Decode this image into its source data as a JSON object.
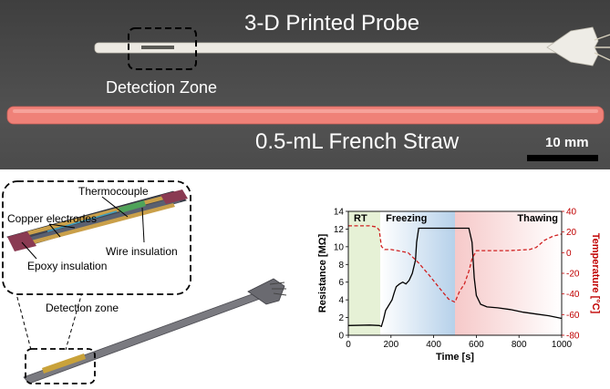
{
  "photo": {
    "probe_title": "3-D Printed Probe",
    "detection_zone_label": "Detection Zone",
    "straw_label": "0.5-mL French Straw",
    "scale_bar_label": "10 mm"
  },
  "schematic": {
    "labels": {
      "thermocouple": "Thermocouple",
      "copper_electrodes": "Copper electrodes",
      "wire_insulation": "Wire insulation",
      "epoxy_insulation": "Epoxy insulation",
      "detection_zone": "Detection zone"
    }
  },
  "chart_data": {
    "type": "line",
    "xlabel": "Time [s]",
    "ylabel": "Resistance [MΩ]",
    "y2label": "Temperature [°C]",
    "xlim": [
      0,
      1000
    ],
    "ylim": [
      0,
      14
    ],
    "y2lim": [
      -80,
      40
    ],
    "x_ticks": [
      0,
      200,
      400,
      600,
      800,
      1000
    ],
    "y_ticks": [
      0,
      2,
      4,
      6,
      8,
      10,
      12,
      14
    ],
    "y2_ticks": [
      -80,
      -60,
      -40,
      -20,
      0,
      20,
      40
    ],
    "regions": [
      {
        "label": "RT",
        "x0": 0,
        "x1": 150,
        "color": "#e6f1d6"
      },
      {
        "label": "Freezing",
        "x0": 150,
        "x1": 500,
        "color": "#b6d1ea"
      },
      {
        "label": "Thawing",
        "x0": 500,
        "x1": 1000,
        "color": "#f6c9c9"
      }
    ],
    "colors": {
      "resistance": "#000000",
      "temperature": "#d02020",
      "right_axis": "#c00000"
    },
    "series": [
      {
        "axis": "left",
        "x": [
          0,
          100,
          145,
          155,
          165,
          175,
          185,
          205,
          215,
          225,
          240,
          255,
          270,
          285,
          300,
          315,
          320,
          330,
          400,
          480,
          565,
          580,
          590,
          600,
          620,
          650,
          700,
          760,
          820,
          880,
          940,
          1000
        ],
        "y": [
          1.1,
          1.15,
          1.1,
          1.0,
          1.8,
          2.8,
          3.2,
          4.0,
          4.8,
          5.5,
          5.8,
          6.0,
          5.8,
          6.2,
          7.0,
          8.5,
          10.5,
          12.1,
          12.1,
          12.1,
          12.1,
          10.5,
          6.5,
          4.5,
          3.5,
          3.2,
          3.1,
          2.9,
          2.6,
          2.4,
          2.2,
          1.9
        ]
      },
      {
        "axis": "right",
        "x": [
          0,
          100,
          130,
          145,
          155,
          170,
          200,
          230,
          280,
          330,
          380,
          430,
          470,
          500,
          520,
          545,
          565,
          580,
          600,
          650,
          750,
          850,
          880,
          920,
          960,
          1000
        ],
        "y": [
          26,
          26,
          25,
          22,
          6,
          3,
          3,
          2,
          0,
          -10,
          -22,
          -35,
          -45,
          -48,
          -38,
          -30,
          -18,
          -6,
          2,
          2,
          2,
          3,
          5,
          12,
          16,
          18
        ]
      }
    ]
  }
}
